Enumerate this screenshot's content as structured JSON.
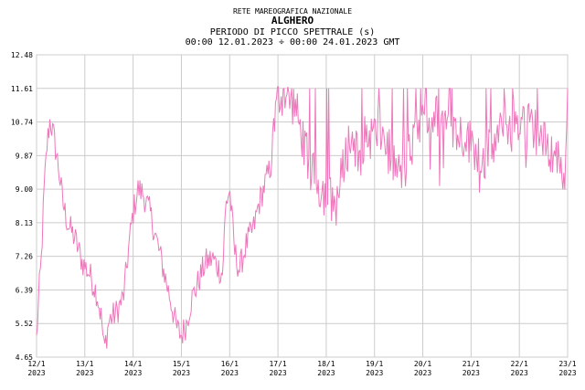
{
  "header": {
    "network": "RETE MAREOGRAFICA NAZIONALE",
    "station": "ALGHERO",
    "parameter": "PERIODO DI PICCO SPETTRALE (s)",
    "period": "00:00 12.01.2023 ÷ 00:00 24.01.2023 GMT"
  },
  "chart_data": {
    "type": "line",
    "title": "ALGHERO",
    "ylabel": "PERIODO DI PICCO SPETTRALE (s)",
    "ylim": [
      4.65,
      12.48
    ],
    "xlim_days": [
      12,
      23
    ],
    "yticks": [
      "4.65",
      "5.52",
      "6.39",
      "7.26",
      "8.13",
      "9.00",
      "9.87",
      "10.74",
      "11.61",
      "12.48"
    ],
    "xticks": [
      {
        "day": "12/1",
        "year": "2023"
      },
      {
        "day": "13/1",
        "year": "2023"
      },
      {
        "day": "14/1",
        "year": "2023"
      },
      {
        "day": "15/1",
        "year": "2023"
      },
      {
        "day": "16/1",
        "year": "2023"
      },
      {
        "day": "17/1",
        "year": "2023"
      },
      {
        "day": "18/1",
        "year": "2023"
      },
      {
        "day": "19/1",
        "year": "2023"
      },
      {
        "day": "20/1",
        "year": "2023"
      },
      {
        "day": "21/1",
        "year": "2023"
      },
      {
        "day": "22/1",
        "year": "2023"
      },
      {
        "day": "23/1",
        "year": "2023"
      }
    ],
    "grid": true,
    "series": [
      {
        "color": "#ee77bb",
        "anchors": [
          [
            12.0,
            5.1
          ],
          [
            12.05,
            6.3
          ],
          [
            12.1,
            7.2
          ],
          [
            12.15,
            8.8
          ],
          [
            12.22,
            10.2
          ],
          [
            12.28,
            10.8
          ],
          [
            12.35,
            10.4
          ],
          [
            12.45,
            9.6
          ],
          [
            12.55,
            8.6
          ],
          [
            12.65,
            8.1
          ],
          [
            12.8,
            7.7
          ],
          [
            12.95,
            7.1
          ],
          [
            13.1,
            6.8
          ],
          [
            13.25,
            6.3
          ],
          [
            13.35,
            5.6
          ],
          [
            13.4,
            4.8
          ],
          [
            13.5,
            5.6
          ],
          [
            13.65,
            5.8
          ],
          [
            13.8,
            6.2
          ],
          [
            13.92,
            7.6
          ],
          [
            14.0,
            8.4
          ],
          [
            14.1,
            9.0
          ],
          [
            14.2,
            8.9
          ],
          [
            14.35,
            8.4
          ],
          [
            14.5,
            7.6
          ],
          [
            14.65,
            6.8
          ],
          [
            14.8,
            6.0
          ],
          [
            14.9,
            5.4
          ],
          [
            15.0,
            5.2
          ],
          [
            15.1,
            5.5
          ],
          [
            15.2,
            6.1
          ],
          [
            15.35,
            6.6
          ],
          [
            15.5,
            7.1
          ],
          [
            15.65,
            7.2
          ],
          [
            15.75,
            7.0
          ],
          [
            15.85,
            6.8
          ],
          [
            15.92,
            8.6
          ],
          [
            16.0,
            9.0
          ],
          [
            16.1,
            7.4
          ],
          [
            16.2,
            6.9
          ],
          [
            16.35,
            7.6
          ],
          [
            16.5,
            8.0
          ],
          [
            16.6,
            8.6
          ],
          [
            16.75,
            9.2
          ],
          [
            16.85,
            9.6
          ],
          [
            16.92,
            10.6
          ],
          [
            17.0,
            11.4
          ],
          [
            17.1,
            11.45
          ],
          [
            17.25,
            11.3
          ],
          [
            17.35,
            11.2
          ],
          [
            17.45,
            10.6
          ],
          [
            17.55,
            10.2
          ],
          [
            17.65,
            9.5
          ],
          [
            17.75,
            9.3
          ],
          [
            17.9,
            9.0
          ],
          [
            18.05,
            8.8
          ],
          [
            18.2,
            8.6
          ],
          [
            18.3,
            9.2
          ],
          [
            18.4,
            9.9
          ],
          [
            18.5,
            10.3
          ],
          [
            18.65,
            10.1
          ],
          [
            18.8,
            10.3
          ],
          [
            18.95,
            10.4
          ],
          [
            19.1,
            10.5
          ],
          [
            19.2,
            10.3
          ],
          [
            19.35,
            9.8
          ],
          [
            19.5,
            9.4
          ],
          [
            19.65,
            9.6
          ],
          [
            19.8,
            10.2
          ],
          [
            19.95,
            10.6
          ],
          [
            20.1,
            10.8
          ],
          [
            20.25,
            10.9
          ],
          [
            20.4,
            10.8
          ],
          [
            20.55,
            10.7
          ],
          [
            20.7,
            10.5
          ],
          [
            20.85,
            10.4
          ],
          [
            21.0,
            10.2
          ],
          [
            21.15,
            10.0
          ],
          [
            21.3,
            9.8
          ],
          [
            21.45,
            10.1
          ],
          [
            21.6,
            10.4
          ],
          [
            21.75,
            10.7
          ],
          [
            21.9,
            10.8
          ],
          [
            22.05,
            10.8
          ],
          [
            22.2,
            10.7
          ],
          [
            22.35,
            10.5
          ],
          [
            22.5,
            10.2
          ],
          [
            22.65,
            10.0
          ],
          [
            22.8,
            9.8
          ],
          [
            22.9,
            9.5
          ],
          [
            23.0,
            10.2
          ]
        ]
      }
    ]
  }
}
